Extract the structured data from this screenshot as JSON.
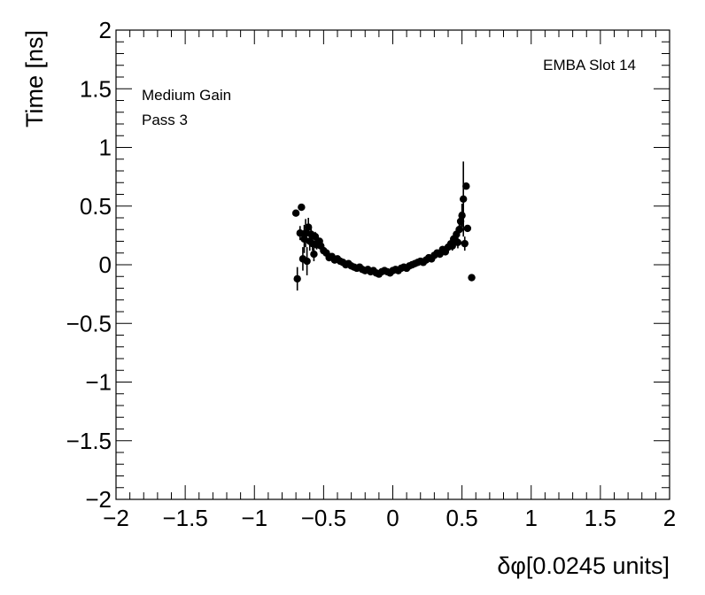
{
  "chart_data": {
    "type": "scatter",
    "title": "",
    "xlabel": "δφ[0.0245 units]",
    "ylabel": "Time [ns]",
    "xlim": [
      -2,
      2
    ],
    "ylim": [
      -2,
      2
    ],
    "x_ticks": [
      "−2",
      "−1.5",
      "−1",
      "−0.5",
      "0",
      "0.5",
      "1",
      "1.5",
      "2"
    ],
    "y_ticks": [
      "−2",
      "−1.5",
      "−1",
      "−0.5",
      "0",
      "0.5",
      "1",
      "1.5",
      "2"
    ],
    "grid": false,
    "annotations": {
      "top_left": [
        "Medium Gain",
        "Pass 3"
      ],
      "top_right": "EMBA Slot 14"
    },
    "series": [
      {
        "marker": "circle",
        "color": "#000000",
        "points": [
          {
            "x": -0.7,
            "y": 0.44,
            "err": 0.02
          },
          {
            "x": -0.69,
            "y": -0.12,
            "err": 0.1
          },
          {
            "x": -0.67,
            "y": 0.27,
            "err": 0.06
          },
          {
            "x": -0.66,
            "y": 0.49,
            "err": 0.02
          },
          {
            "x": -0.65,
            "y": 0.05,
            "err": 0.1
          },
          {
            "x": -0.64,
            "y": 0.22,
            "err": 0.12
          },
          {
            "x": -0.63,
            "y": 0.27,
            "err": 0.12
          },
          {
            "x": -0.62,
            "y": 0.03,
            "err": 0.12
          },
          {
            "x": -0.61,
            "y": 0.32,
            "err": 0.08
          },
          {
            "x": -0.6,
            "y": 0.2,
            "err": 0.08
          },
          {
            "x": -0.59,
            "y": 0.26,
            "err": 0.06
          },
          {
            "x": -0.58,
            "y": 0.18,
            "err": 0.06
          },
          {
            "x": -0.57,
            "y": 0.09,
            "err": 0.06
          },
          {
            "x": -0.56,
            "y": 0.24,
            "err": 0.04
          },
          {
            "x": -0.55,
            "y": 0.17,
            "err": 0.04
          },
          {
            "x": -0.53,
            "y": 0.2,
            "err": 0.03
          },
          {
            "x": -0.52,
            "y": 0.16,
            "err": 0.03
          },
          {
            "x": -0.5,
            "y": 0.12,
            "err": 0.02
          },
          {
            "x": -0.48,
            "y": 0.1,
            "err": 0.02
          },
          {
            "x": -0.46,
            "y": 0.06,
            "err": 0.02
          },
          {
            "x": -0.44,
            "y": 0.07,
            "err": 0.02
          },
          {
            "x": -0.42,
            "y": 0.04,
            "err": 0.02
          },
          {
            "x": -0.4,
            "y": 0.05,
            "err": 0.02
          },
          {
            "x": -0.38,
            "y": 0.03,
            "err": 0.02
          },
          {
            "x": -0.36,
            "y": 0.02,
            "err": 0.02
          },
          {
            "x": -0.34,
            "y": 0.0,
            "err": 0.02
          },
          {
            "x": -0.32,
            "y": 0.01,
            "err": 0.02
          },
          {
            "x": -0.3,
            "y": -0.01,
            "err": 0.02
          },
          {
            "x": -0.28,
            "y": -0.02,
            "err": 0.02
          },
          {
            "x": -0.26,
            "y": -0.03,
            "err": 0.02
          },
          {
            "x": -0.24,
            "y": -0.02,
            "err": 0.02
          },
          {
            "x": -0.22,
            "y": -0.04,
            "err": 0.02
          },
          {
            "x": -0.2,
            "y": -0.05,
            "err": 0.02
          },
          {
            "x": -0.18,
            "y": -0.04,
            "err": 0.02
          },
          {
            "x": -0.16,
            "y": -0.06,
            "err": 0.02
          },
          {
            "x": -0.14,
            "y": -0.05,
            "err": 0.02
          },
          {
            "x": -0.12,
            "y": -0.07,
            "err": 0.02
          },
          {
            "x": -0.1,
            "y": -0.08,
            "err": 0.02
          },
          {
            "x": -0.08,
            "y": -0.06,
            "err": 0.02
          },
          {
            "x": -0.06,
            "y": -0.05,
            "err": 0.02
          },
          {
            "x": -0.04,
            "y": -0.06,
            "err": 0.02
          },
          {
            "x": -0.02,
            "y": -0.07,
            "err": 0.02
          },
          {
            "x": 0.0,
            "y": -0.05,
            "err": 0.02
          },
          {
            "x": 0.02,
            "y": -0.04,
            "err": 0.02
          },
          {
            "x": 0.04,
            "y": -0.05,
            "err": 0.02
          },
          {
            "x": 0.06,
            "y": -0.03,
            "err": 0.02
          },
          {
            "x": 0.08,
            "y": -0.02,
            "err": 0.02
          },
          {
            "x": 0.1,
            "y": -0.03,
            "err": 0.02
          },
          {
            "x": 0.12,
            "y": -0.01,
            "err": 0.02
          },
          {
            "x": 0.14,
            "y": 0.0,
            "err": 0.02
          },
          {
            "x": 0.16,
            "y": 0.01,
            "err": 0.02
          },
          {
            "x": 0.18,
            "y": 0.02,
            "err": 0.02
          },
          {
            "x": 0.2,
            "y": 0.03,
            "err": 0.02
          },
          {
            "x": 0.22,
            "y": 0.02,
            "err": 0.02
          },
          {
            "x": 0.24,
            "y": 0.04,
            "err": 0.02
          },
          {
            "x": 0.26,
            "y": 0.06,
            "err": 0.02
          },
          {
            "x": 0.28,
            "y": 0.05,
            "err": 0.02
          },
          {
            "x": 0.3,
            "y": 0.08,
            "err": 0.02
          },
          {
            "x": 0.32,
            "y": 0.1,
            "err": 0.02
          },
          {
            "x": 0.34,
            "y": 0.09,
            "err": 0.03
          },
          {
            "x": 0.36,
            "y": 0.13,
            "err": 0.03
          },
          {
            "x": 0.38,
            "y": 0.11,
            "err": 0.03
          },
          {
            "x": 0.4,
            "y": 0.15,
            "err": 0.03
          },
          {
            "x": 0.42,
            "y": 0.18,
            "err": 0.04
          },
          {
            "x": 0.43,
            "y": 0.16,
            "err": 0.04
          },
          {
            "x": 0.44,
            "y": 0.22,
            "err": 0.04
          },
          {
            "x": 0.45,
            "y": 0.2,
            "err": 0.05
          },
          {
            "x": 0.46,
            "y": 0.26,
            "err": 0.05
          },
          {
            "x": 0.47,
            "y": 0.19,
            "err": 0.05
          },
          {
            "x": 0.48,
            "y": 0.3,
            "err": 0.06
          },
          {
            "x": 0.49,
            "y": 0.37,
            "err": 0.08
          },
          {
            "x": 0.5,
            "y": 0.42,
            "err": 0.1
          },
          {
            "x": 0.51,
            "y": 0.56,
            "err": 0.32
          },
          {
            "x": 0.52,
            "y": 0.18,
            "err": 0.06
          },
          {
            "x": 0.53,
            "y": 0.67,
            "err": 0.02
          },
          {
            "x": 0.54,
            "y": 0.31,
            "err": 0.03
          },
          {
            "x": 0.57,
            "y": -0.11,
            "err": 0.02
          }
        ]
      }
    ]
  }
}
